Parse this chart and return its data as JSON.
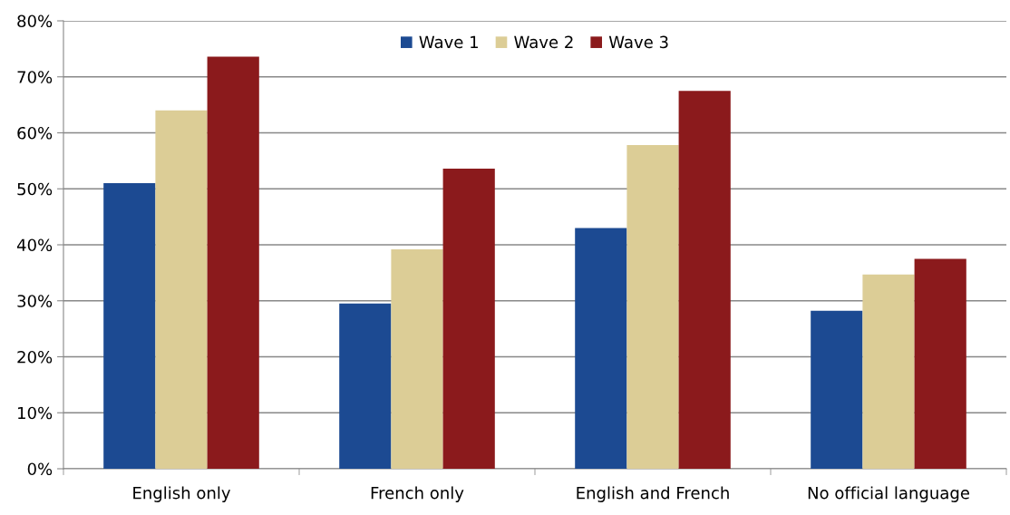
{
  "chart_data": {
    "type": "bar",
    "categories": [
      "English only",
      "French only",
      "English and French",
      "No official language"
    ],
    "series": [
      {
        "name": "Wave 1",
        "color": "#1c4a92",
        "values": [
          51.0,
          29.5,
          43.0,
          28.2
        ]
      },
      {
        "name": "Wave 2",
        "color": "#dccd96",
        "values": [
          64.0,
          39.2,
          57.8,
          34.7
        ]
      },
      {
        "name": "Wave 3",
        "color": "#8b1a1c",
        "values": [
          73.6,
          53.6,
          67.5,
          37.5
        ]
      }
    ],
    "ylim": [
      0,
      80
    ],
    "yticks": [
      {
        "value": 0,
        "label": "0%"
      },
      {
        "value": 10,
        "label": "10%"
      },
      {
        "value": 20,
        "label": "20%"
      },
      {
        "value": 30,
        "label": "30%"
      },
      {
        "value": 40,
        "label": "40%"
      },
      {
        "value": 50,
        "label": "50%"
      },
      {
        "value": 60,
        "label": "60%"
      },
      {
        "value": 70,
        "label": "70%"
      },
      {
        "value": 80,
        "label": "80%"
      }
    ],
    "grid": "y",
    "legend": "top"
  }
}
